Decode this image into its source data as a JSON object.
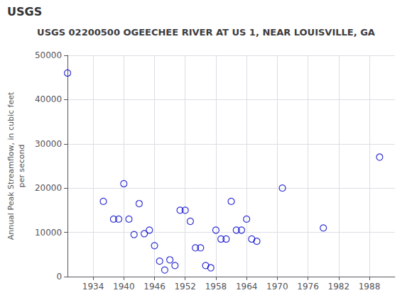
{
  "chart_data": {
    "type": "scatter",
    "title": "USGS 02200500 OGEECHEE RIVER AT US 1, NEAR LOUISVILLE, GA",
    "annotations": [
      "USGS"
    ],
    "ylabel": "Annual Peak Streamflow, in cubic feet\nper second",
    "x": [
      1929,
      1936,
      1938,
      1939,
      1940,
      1941,
      1942,
      1943,
      1944,
      1945,
      1946,
      1947,
      1948,
      1949,
      1950,
      1951,
      1952,
      1953,
      1954,
      1955,
      1956,
      1957,
      1958,
      1959,
      1960,
      1961,
      1962,
      1963,
      1964,
      1965,
      1966,
      1971,
      1979,
      1990
    ],
    "values": [
      46000,
      17000,
      13000,
      13000,
      21000,
      13000,
      9500,
      16500,
      9700,
      10500,
      7000,
      3500,
      1500,
      3800,
      2500,
      15000,
      15000,
      12500,
      6500,
      6500,
      2500,
      2000,
      10500,
      8500,
      8500,
      17000,
      10500,
      10500,
      13000,
      8500,
      8000,
      20000,
      11000,
      27000
    ],
    "color": "#0000cc",
    "marker": "circle",
    "xlim": [
      1929,
      1993
    ],
    "ylim": [
      0,
      50000
    ],
    "xticks": [
      1934,
      1940,
      1946,
      1952,
      1958,
      1964,
      1970,
      1976,
      1982,
      1988
    ],
    "yticks": [
      0,
      10000,
      20000,
      30000,
      40000,
      50000
    ],
    "grid": true
  }
}
